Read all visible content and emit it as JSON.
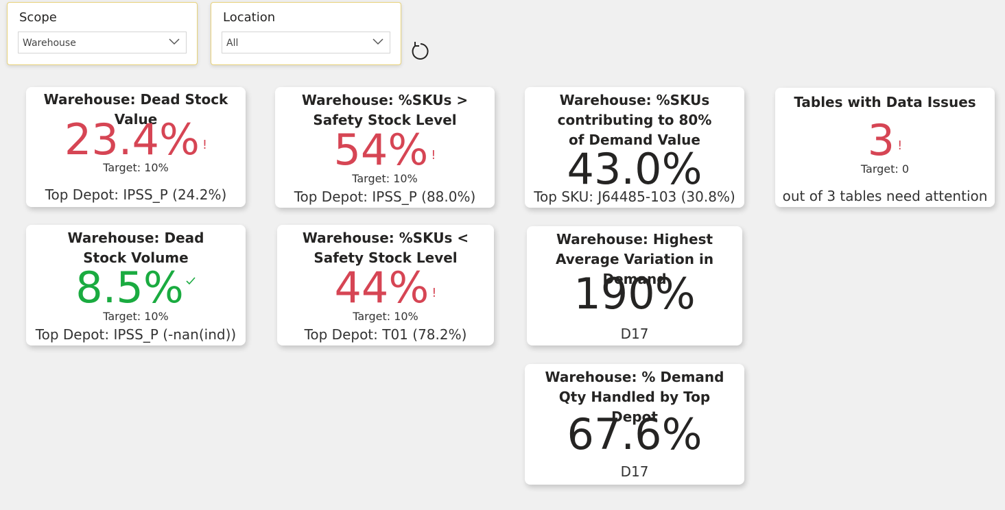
{
  "filters": {
    "scope": {
      "label": "Scope",
      "value": "Warehouse"
    },
    "location": {
      "label": "Location",
      "value": "All"
    }
  },
  "cards": {
    "dead_stock_value": {
      "title": "Warehouse: Dead Stock Value",
      "value": "23.4%",
      "flag": "!",
      "target": "Target: 10%",
      "footer": "Top Depot: IPSS_P (24.2%)"
    },
    "skus_above_safety": {
      "title": "Warehouse: %SKUs > Safety Stock Level",
      "value": "54%",
      "flag": "!",
      "target": "Target: 10%",
      "footer": "Top Depot: IPSS_P (88.0%)"
    },
    "skus_80_demand": {
      "title": "Warehouse: %SKUs contributing to 80% of Demand Value",
      "value": "43.0%",
      "footer": "Top SKU: J64485-103 (30.8%)"
    },
    "data_issues": {
      "title": "Tables with Data Issues",
      "value": "3",
      "flag": "!",
      "target": "Target: 0",
      "footer": "out of 3 tables need attention"
    },
    "dead_stock_volume": {
      "title": "Warehouse: Dead Stock Volume",
      "value": "8.5%",
      "target": "Target: 10%",
      "footer": "Top Depot: IPSS_P (-nan(ind))"
    },
    "skus_below_safety": {
      "title": "Warehouse: %SKUs < Safety Stock Level",
      "value": "44%",
      "flag": "!",
      "target": "Target: 10%",
      "footer": "Top Depot: T01 (78.2%)"
    },
    "highest_avg_variation": {
      "title": "Warehouse: Highest Average Variation in Demand",
      "value": "190%",
      "footer": "D17"
    },
    "demand_qty_top_depot": {
      "title": "Warehouse: % Demand Qty Handled by Top Depot",
      "value": "67.6%",
      "footer": "D17"
    }
  },
  "colors": {
    "alert": "#d64554",
    "good": "#1aab40",
    "neutral": "#252423",
    "slicer_border": "#e8d27a"
  },
  "icons": {
    "dropdown": "chevron-down-icon",
    "refresh": "refresh-icon",
    "status_ok": "checkmark-icon"
  }
}
